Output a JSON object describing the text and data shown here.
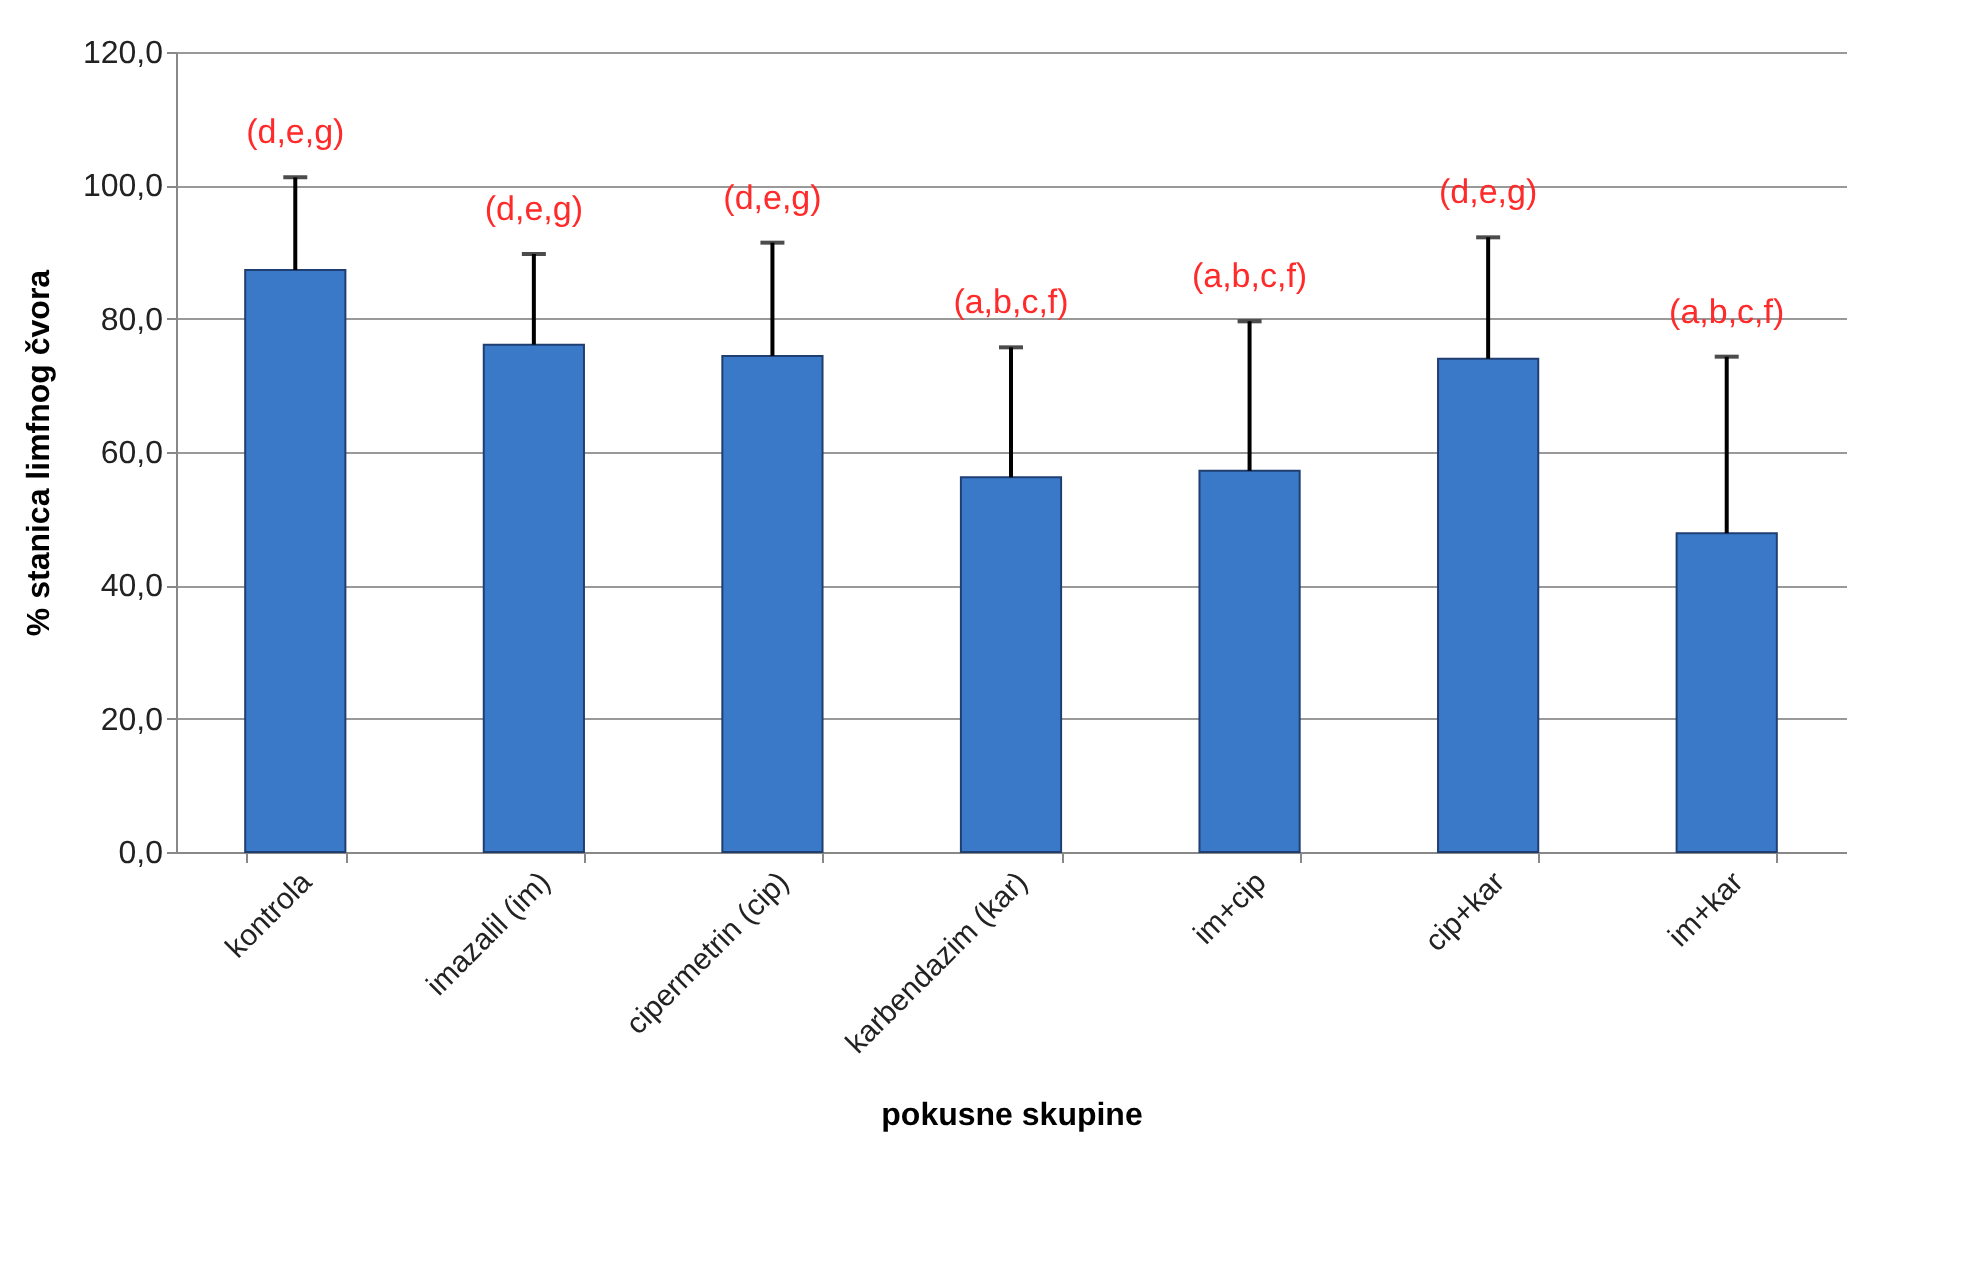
{
  "chart_data": {
    "type": "bar",
    "xlabel": "pokusne skupine",
    "ylabel": "% stanica limfnog čvora",
    "categories": [
      "kontrola",
      "imazalil (im)",
      "cipermetrin (cip)",
      "karbendazim (kar)",
      "im+cip",
      "cip+kar",
      "im+kar"
    ],
    "values": [
      87.3,
      76.1,
      74.4,
      56.2,
      57.2,
      74.0,
      47.8
    ],
    "errors": [
      [
        87.3,
        101.2
      ],
      [
        76.1,
        89.7
      ],
      [
        74.4,
        91.4
      ],
      [
        56.2,
        75.7
      ],
      [
        57.2,
        79.6
      ],
      [
        74.0,
        92.2
      ],
      [
        47.8,
        74.3
      ]
    ],
    "color": "#3a78c8",
    "ylim": [
      0,
      120
    ],
    "yticks": [
      {
        "value": 0,
        "label": "0,0"
      },
      {
        "value": 20,
        "label": "20,0"
      },
      {
        "value": 40,
        "label": "40,0"
      },
      {
        "value": 60,
        "label": "60,0"
      },
      {
        "value": 80,
        "label": "80,0"
      },
      {
        "value": 100,
        "label": "100,0"
      },
      {
        "value": 120,
        "label": "120,0"
      }
    ],
    "grid": "y",
    "annotations": [
      {
        "text": "(d,e,g)",
        "x": "kontrola",
        "y": 101.2
      },
      {
        "text": "(d,e,g)",
        "x": "imazalil (im)",
        "y": 89.7
      },
      {
        "text": "(d,e,g)",
        "x": "cipermetrin (cip)",
        "y": 91.4
      },
      {
        "text": "(a,b,c,f)",
        "x": "karbendazim (kar)",
        "y": 75.7
      },
      {
        "text": "(a,b,c,f)",
        "x": "im+cip",
        "y": 79.6
      },
      {
        "text": "(d,e,g)",
        "x": "cip+kar",
        "y": 92.2
      },
      {
        "text": "(a,b,c,f)",
        "x": "im+kar",
        "y": 74.3
      }
    ]
  }
}
